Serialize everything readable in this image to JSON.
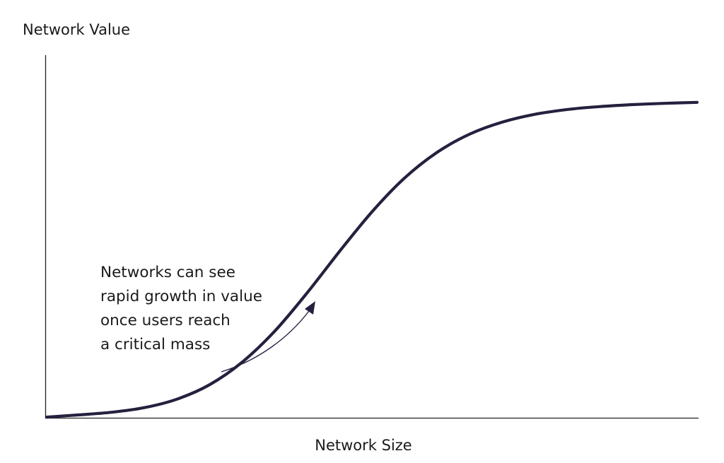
{
  "chart_data": {
    "type": "line",
    "title": "",
    "xlabel": "Network Size",
    "ylabel": "Network Value",
    "grid": false,
    "legend": "none",
    "xlim": [
      0,
      1
    ],
    "ylim": [
      0,
      1
    ],
    "series": [
      {
        "color": "#26203f",
        "x": [
          0.0,
          0.05,
          0.1,
          0.15,
          0.2,
          0.25,
          0.3,
          0.35,
          0.4,
          0.45,
          0.5,
          0.55,
          0.6,
          0.65,
          0.7,
          0.75,
          0.8,
          0.85,
          0.9,
          0.95,
          1.0
        ],
        "y": [
          0.002,
          0.009,
          0.017,
          0.031,
          0.057,
          0.101,
          0.17,
          0.265,
          0.383,
          0.511,
          0.633,
          0.737,
          0.816,
          0.872,
          0.909,
          0.933,
          0.948,
          0.957,
          0.963,
          0.967,
          0.97
        ]
      }
    ],
    "annotation": {
      "lines": [
        "Networks can see",
        "rapid growth in value",
        "once users reach",
        "a critical mass"
      ],
      "arrow_color": "#26203f"
    }
  }
}
